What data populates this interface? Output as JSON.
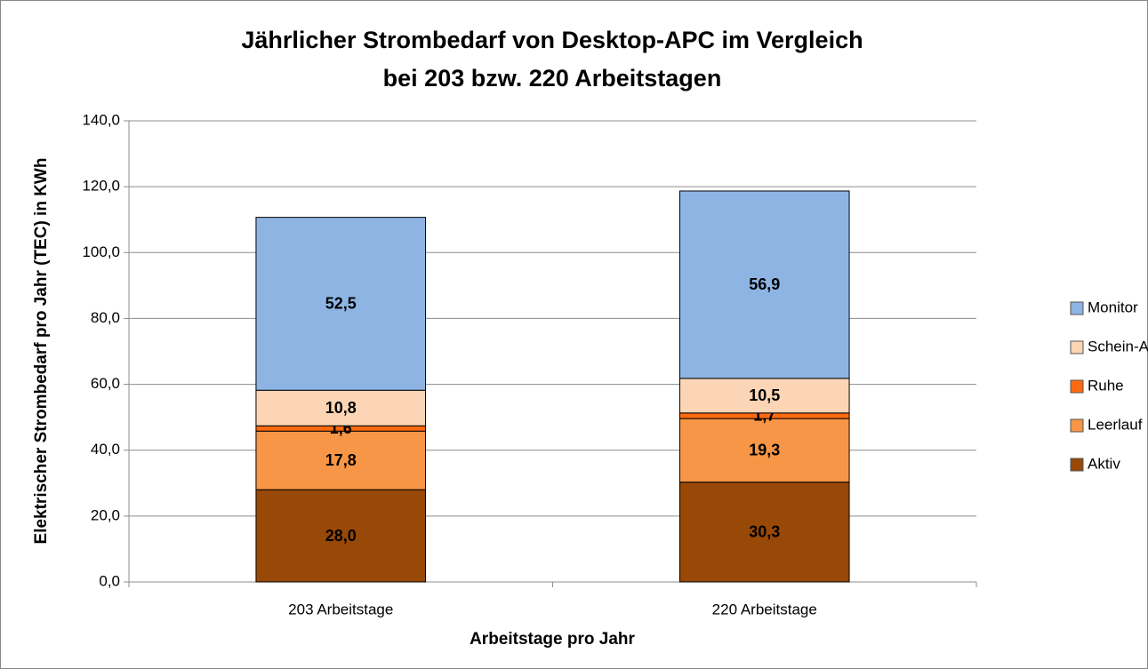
{
  "chart_data": {
    "type": "stacked_bar",
    "title": [
      "Jährlicher Strombedarf von Desktop-APC im Vergleich",
      "bei 203 bzw. 220 Arbeitstagen"
    ],
    "x_label": "Arbeitstage pro Jahr",
    "y_label": "Elektrischer Strombedarf pro Jahr (TEC) in KWh",
    "categories": [
      "203 Arbeitstage",
      "220 Arbeitstage"
    ],
    "series": [
      {
        "name": "Aktiv",
        "color": "#984807",
        "label_color": "#ffffff",
        "values": [
          28.0,
          30.3
        ],
        "value_labels": [
          "28,0",
          "30,3"
        ]
      },
      {
        "name": "Leerlauf",
        "color": "#f79646",
        "label_color": "#000000",
        "values": [
          17.8,
          19.3
        ],
        "value_labels": [
          "17,8",
          "19,3"
        ]
      },
      {
        "name": "Ruhe",
        "color": "#ff6a10",
        "label_color": "#000000",
        "values": [
          1.6,
          1.7
        ],
        "value_labels": [
          "1,6",
          "1,7"
        ]
      },
      {
        "name": "Schein-Aus",
        "color": "#fbd5b5",
        "label_color": "#000000",
        "values": [
          10.8,
          10.5
        ],
        "value_labels": [
          "10,8",
          "10,5"
        ]
      },
      {
        "name": "Monitor",
        "color": "#8eb4e3",
        "label_color": "#000000",
        "values": [
          52.5,
          56.9
        ],
        "value_labels": [
          "52,5",
          "56,9"
        ]
      }
    ],
    "ylim": [
      0,
      140
    ],
    "yticks": [
      {
        "value": 0,
        "label": "0,0"
      },
      {
        "value": 20,
        "label": "20,0"
      },
      {
        "value": 40,
        "label": "40,0"
      },
      {
        "value": 60,
        "label": "60,0"
      },
      {
        "value": 80,
        "label": "80,0"
      },
      {
        "value": 100,
        "label": "100,0"
      },
      {
        "value": 120,
        "label": "120,0"
      },
      {
        "value": 140,
        "label": "140,0"
      }
    ],
    "grid": true,
    "legend": "right"
  }
}
